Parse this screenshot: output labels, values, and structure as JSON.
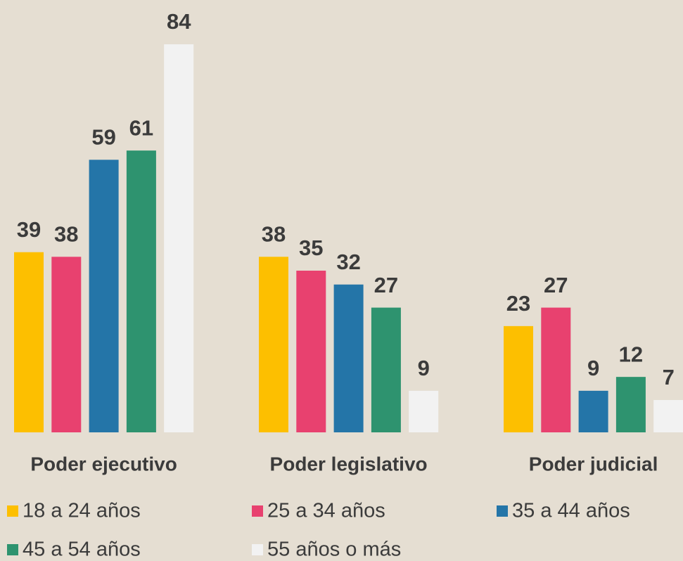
{
  "chart_data": {
    "type": "bar",
    "categories": [
      "Poder ejecutivo",
      "Poder legislativo",
      "Poder judicial"
    ],
    "series": [
      {
        "name": "18 a 24 años",
        "color": "#fdbf00",
        "values": [
          39,
          38,
          23
        ]
      },
      {
        "name": "25 a 34 años",
        "color": "#e8416f",
        "values": [
          38,
          35,
          27
        ]
      },
      {
        "name": "35 a 44 años",
        "color": "#2475a8",
        "values": [
          59,
          32,
          9
        ]
      },
      {
        "name": "45 a 54 años",
        "color": "#2e936f",
        "values": [
          61,
          27,
          12
        ]
      },
      {
        "name": "55 años o más",
        "color": "#f2f2f2",
        "values": [
          84,
          9,
          7
        ]
      }
    ]
  }
}
